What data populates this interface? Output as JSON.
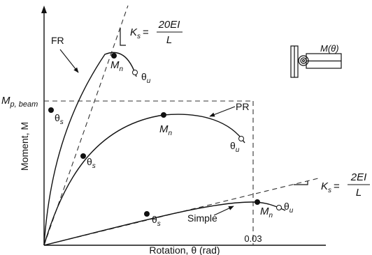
{
  "labels": {
    "y_axis": "Moment, M",
    "x_axis": "Rotation, θ (rad)",
    "x_tick": "0.03",
    "mp_beam_main": "M",
    "mp_beam_sub": "p, beam",
    "fr": "FR",
    "pr": "PR",
    "simple": "Simple",
    "mn_main": "M",
    "mn_sub": "n",
    "theta": "θ",
    "theta_s_sub": "s",
    "theta_u_sub": "u",
    "ks_main": "K",
    "ks_sub": "s",
    "ks_eq": "=",
    "ks_fr_num": "20EI",
    "ks_fr_den": "L",
    "ks_simple_num": "2EI",
    "ks_simple_den": "L",
    "inset_moment": "M(θ)"
  },
  "colors": {
    "line": "#111111",
    "dash": "#333333",
    "marker_fill": "#111111",
    "open_marker_fill": "#ffffff"
  }
}
